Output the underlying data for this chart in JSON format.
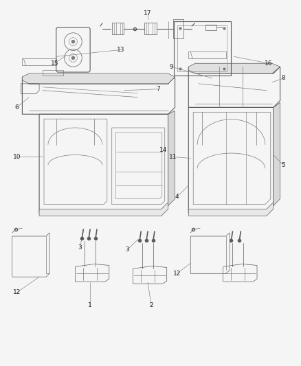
{
  "bg": "#f5f5f5",
  "lc": "#5a5a5a",
  "lc_thin": "#7a7a7a",
  "lc_light": "#aaaaaa",
  "fig_w": 4.38,
  "fig_h": 5.33,
  "dpi": 100,
  "label_fs": 6.5,
  "leader_color": "#888888"
}
